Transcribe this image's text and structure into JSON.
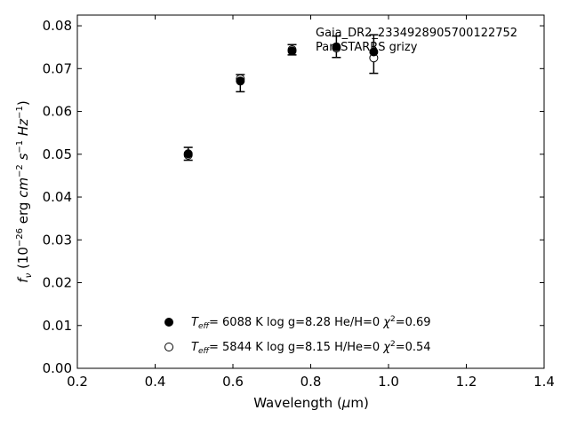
{
  "chart_data": {
    "type": "scatter",
    "title": "",
    "xlabel": "Wavelength (μm)",
    "ylabel": "f_ν (10^-26 erg cm^-2 s^-1 Hz^-1)",
    "xlim": [
      0.2,
      1.4
    ],
    "ylim": [
      0.0,
      0.0825
    ],
    "x_ticks": [
      0.2,
      0.4,
      0.6,
      0.8,
      1.0,
      1.2,
      1.4
    ],
    "y_ticks": [
      0.0,
      0.01,
      0.02,
      0.03,
      0.04,
      0.05,
      0.06,
      0.07,
      0.08
    ],
    "x_tick_labels": [
      "0.2",
      "0.4",
      "0.6",
      "0.8",
      "1.0",
      "1.2",
      "1.4"
    ],
    "y_tick_labels": [
      "0.00",
      "0.01",
      "0.02",
      "0.03",
      "0.04",
      "0.05",
      "0.06",
      "0.07",
      "0.08"
    ],
    "grid": false,
    "annotation": {
      "object_name": "Gaia_DR2_2334928905700122752",
      "survey": "Pan-STARRS grizy"
    },
    "observed": {
      "x": [
        0.485,
        0.619,
        0.752,
        0.866,
        0.962
      ],
      "y": [
        0.0501,
        0.0666,
        0.0744,
        0.0751,
        0.0734
      ],
      "yerr": [
        0.0015,
        0.002,
        0.0012,
        0.0025,
        0.0045
      ]
    },
    "series": [
      {
        "marker": "filled-circle",
        "x": [
          0.485,
          0.619,
          0.752,
          0.866,
          0.962
        ],
        "y": [
          0.0501,
          0.0671,
          0.0741,
          0.0751,
          0.0739
        ]
      },
      {
        "marker": "open-circle",
        "x": [
          0.485,
          0.619,
          0.752,
          0.866,
          0.962
        ],
        "y": [
          0.0498,
          0.0676,
          0.0744,
          0.0748,
          0.0725
        ]
      }
    ],
    "legend_placement": "lower-center",
    "legend": [
      {
        "marker": "filled-circle",
        "teff_label": "T_eff",
        "text": "=  6088 K  log g=8.28  He/H=0  χ",
        "chi2_value": "=0.69"
      },
      {
        "marker": "open-circle",
        "teff_label": "T_eff",
        "text": "=  5844 K  log g=8.15  H/He=0  χ",
        "chi2_value": "=0.54"
      }
    ]
  }
}
